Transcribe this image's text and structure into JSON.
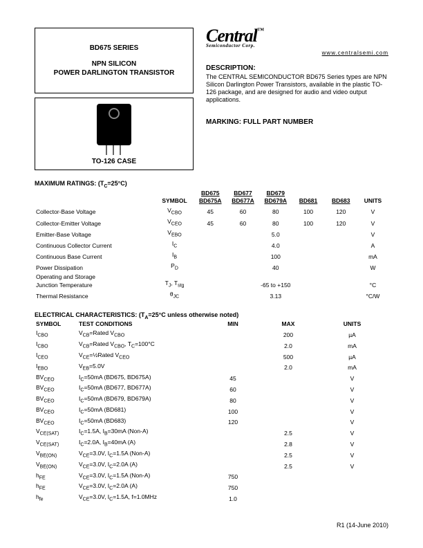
{
  "header": {
    "series": "BD675 SERIES",
    "type1": "NPN SILICON",
    "type2": "POWER DARLINGTON TRANSISTOR",
    "case": "TO-126 CASE",
    "logo": "Central",
    "logo_sub": "Semiconductor Corp.",
    "website": "www.centralsemi.com",
    "desc_head": "DESCRIPTION:",
    "desc": "The CENTRAL SEMICONDUCTOR BD675 Series types are NPN Silicon Darlington Power Transistors, available in the plastic TO-126 package, and are designed for audio and video output applications.",
    "marking": "MARKING: FULL PART NUMBER"
  },
  "max": {
    "title": "MAXIMUM RATINGS: (T",
    "title2": "=25°C)",
    "symbol_h": "SYMBOL",
    "units_h": "UNITS",
    "cols": [
      "BD675",
      "BD677",
      "BD679",
      "",
      ""
    ],
    "cols2": [
      "BD675A",
      "BD677A",
      "BD679A",
      "BD681",
      "BD683"
    ],
    "rows": [
      {
        "p": "Collector-Base Voltage",
        "s": "V",
        "ss": "CBO",
        "v": [
          "45",
          "60",
          "80",
          "100",
          "120"
        ],
        "u": "V"
      },
      {
        "p": "Collector-Emitter Voltage",
        "s": "V",
        "ss": "CEO",
        "v": [
          "45",
          "60",
          "80",
          "100",
          "120"
        ],
        "u": "V"
      },
      {
        "p": "Emitter-Base Voltage",
        "s": "V",
        "ss": "EBO",
        "v": [
          "",
          "",
          "5.0",
          "",
          ""
        ],
        "u": "V"
      },
      {
        "p": "Continuous Collector Current",
        "s": "I",
        "ss": "C",
        "v": [
          "",
          "",
          "4.0",
          "",
          ""
        ],
        "u": "A"
      },
      {
        "p": "Continuous Base Current",
        "s": "I",
        "ss": "B",
        "v": [
          "",
          "",
          "100",
          "",
          ""
        ],
        "u": "mA"
      },
      {
        "p": "Power Dissipation",
        "s": "P",
        "ss": "D",
        "v": [
          "",
          "",
          "40",
          "",
          ""
        ],
        "u": "W"
      },
      {
        "p": "Operating and Storage",
        "p2": "Junction Temperature",
        "s": "T",
        "ss": "J",
        "s2": ", T",
        "ss2": "stg",
        "v": [
          "",
          "",
          "-65 to +150",
          "",
          ""
        ],
        "u": "°C"
      },
      {
        "p": "Thermal Resistance",
        "s": "θ",
        "ss": "JC",
        "v": [
          "",
          "",
          "3.13",
          "",
          ""
        ],
        "u": "°C/W"
      }
    ]
  },
  "elec": {
    "title": "ELECTRICAL CHARACTERISTICS: (T",
    "title2": "=25°C unless otherwise noted)",
    "h": [
      "SYMBOL",
      "TEST CONDITIONS",
      "MIN",
      "MAX",
      "UNITS"
    ],
    "rows": [
      {
        "s": "I",
        "ss": "CBO",
        "c": "V_CB=Rated V_CBO",
        "min": "",
        "max": "200",
        "u": "µA"
      },
      {
        "s": "I",
        "ss": "CBO",
        "c": "V_CB=Rated V_CBO, T_C=100°C",
        "min": "",
        "max": "2.0",
        "u": "mA"
      },
      {
        "s": "I",
        "ss": "CEO",
        "c": "V_CE=½Rated V_CEO",
        "min": "",
        "max": "500",
        "u": "µA"
      },
      {
        "s": "I",
        "ss": "EBO",
        "c": "V_EB=5.0V",
        "min": "",
        "max": "2.0",
        "u": "mA"
      },
      {
        "s": "BV",
        "ss": "CEO",
        "c": "I_C=50mA (BD675, BD675A)",
        "min": "45",
        "max": "",
        "u": "V"
      },
      {
        "s": "BV",
        "ss": "CEO",
        "c": "I_C=50mA (BD677, BD677A)",
        "min": "60",
        "max": "",
        "u": "V"
      },
      {
        "s": "BV",
        "ss": "CEO",
        "c": "I_C=50mA (BD679, BD679A)",
        "min": "80",
        "max": "",
        "u": "V"
      },
      {
        "s": "BV",
        "ss": "CEO",
        "c": "I_C=50mA (BD681)",
        "min": "100",
        "max": "",
        "u": "V"
      },
      {
        "s": "BV",
        "ss": "CEO",
        "c": "I_C=50mA (BD683)",
        "min": "120",
        "max": "",
        "u": "V"
      },
      {
        "s": "V",
        "ss": "CE(SAT)",
        "c": "I_C=1.5A, I_B=30mA (Non-A)",
        "min": "",
        "max": "2.5",
        "u": "V"
      },
      {
        "s": "V",
        "ss": "CE(SAT)",
        "c": "I_C=2.0A, I_B=40mA (A)",
        "min": "",
        "max": "2.8",
        "u": "V"
      },
      {
        "s": "V",
        "ss": "BE(ON)",
        "c": "V_CE=3.0V, I_C=1.5A (Non-A)",
        "min": "",
        "max": "2.5",
        "u": "V"
      },
      {
        "s": "V",
        "ss": "BE(ON)",
        "c": "V_CE=3.0V, I_C=2.0A (A)",
        "min": "",
        "max": "2.5",
        "u": "V"
      },
      {
        "s": "h",
        "ss": "FE",
        "c": "V_CE=3.0V, I_C=1.5A (Non-A)",
        "min": "750",
        "max": "",
        "u": ""
      },
      {
        "s": "h",
        "ss": "FE",
        "c": "V_CE=3.0V, I_C=2.0A (A)",
        "min": "750",
        "max": "",
        "u": ""
      },
      {
        "s": "h",
        "ss": "fe",
        "c": "V_CE=3.0V, I_C=1.5A, f=1.0MHz",
        "min": "1.0",
        "max": "",
        "u": ""
      }
    ]
  },
  "footer": "R1 (14-June 2010)"
}
